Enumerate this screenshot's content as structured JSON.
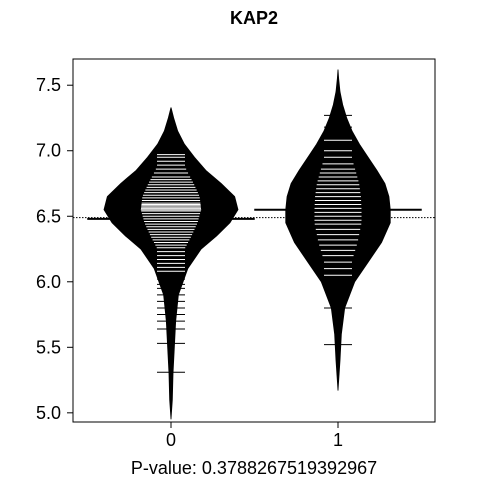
{
  "chart_data": {
    "type": "beanplot",
    "title": "KAP2",
    "subtitle": "P-value: 0.3788267519392967",
    "xlabel": "",
    "ylabel": "",
    "categories": [
      "0",
      "1"
    ],
    "ylim": [
      4.93,
      7.7
    ],
    "yticks": [
      "5.0",
      "5.5",
      "6.0",
      "6.5",
      "7.0",
      "7.5"
    ],
    "overall_mean": 6.49,
    "grid": false,
    "legend": "none",
    "colors": {
      "bean": "#000000",
      "lines": "#ffffff",
      "background": "#ffffff"
    },
    "series": [
      {
        "category": "0",
        "mean": 6.48,
        "y_range": [
          4.95,
          7.33
        ],
        "density_profile": [
          [
            4.95,
            0.0
          ],
          [
            5.1,
            0.02
          ],
          [
            5.3,
            0.03
          ],
          [
            5.5,
            0.05
          ],
          [
            5.7,
            0.07
          ],
          [
            5.9,
            0.11
          ],
          [
            6.1,
            0.25
          ],
          [
            6.25,
            0.45
          ],
          [
            6.35,
            0.68
          ],
          [
            6.45,
            0.88
          ],
          [
            6.55,
            1.0
          ],
          [
            6.65,
            0.95
          ],
          [
            6.75,
            0.75
          ],
          [
            6.85,
            0.52
          ],
          [
            6.95,
            0.35
          ],
          [
            7.05,
            0.2
          ],
          [
            7.15,
            0.1
          ],
          [
            7.25,
            0.04
          ],
          [
            7.33,
            0.0
          ]
        ],
        "observations": [
          5.31,
          5.53,
          5.64,
          5.7,
          5.75,
          5.8,
          5.85,
          5.9,
          5.95,
          5.98,
          6.02,
          6.05,
          6.08,
          6.11,
          6.14,
          6.17,
          6.2,
          6.23,
          6.26,
          6.28,
          6.3,
          6.32,
          6.34,
          6.36,
          6.38,
          6.4,
          6.42,
          6.44,
          6.46,
          6.48,
          6.5,
          6.52,
          6.54,
          6.55,
          6.56,
          6.57,
          6.58,
          6.59,
          6.6,
          6.62,
          6.64,
          6.66,
          6.68,
          6.7,
          6.72,
          6.74,
          6.76,
          6.78,
          6.8,
          6.83,
          6.86,
          6.89,
          6.92,
          6.95,
          6.97
        ]
      },
      {
        "category": "1",
        "mean": 6.55,
        "y_range": [
          5.17,
          7.62
        ],
        "density_profile": [
          [
            5.17,
            0.0
          ],
          [
            5.4,
            0.03
          ],
          [
            5.6,
            0.05
          ],
          [
            5.8,
            0.1
          ],
          [
            6.0,
            0.25
          ],
          [
            6.15,
            0.45
          ],
          [
            6.3,
            0.65
          ],
          [
            6.45,
            0.78
          ],
          [
            6.55,
            0.78
          ],
          [
            6.65,
            0.76
          ],
          [
            6.75,
            0.7
          ],
          [
            6.85,
            0.58
          ],
          [
            6.95,
            0.45
          ],
          [
            7.05,
            0.32
          ],
          [
            7.15,
            0.21
          ],
          [
            7.25,
            0.13
          ],
          [
            7.35,
            0.07
          ],
          [
            7.45,
            0.03
          ],
          [
            7.55,
            0.01
          ],
          [
            7.62,
            0.0
          ]
        ],
        "observations": [
          5.52,
          5.8,
          6.05,
          6.1,
          6.15,
          6.2,
          6.24,
          6.28,
          6.32,
          6.36,
          6.4,
          6.44,
          6.47,
          6.5,
          6.53,
          6.56,
          6.59,
          6.62,
          6.65,
          6.68,
          6.71,
          6.74,
          6.77,
          6.8,
          6.83,
          6.86,
          6.9,
          6.95,
          7.0,
          7.08,
          7.18,
          7.27
        ]
      }
    ]
  }
}
